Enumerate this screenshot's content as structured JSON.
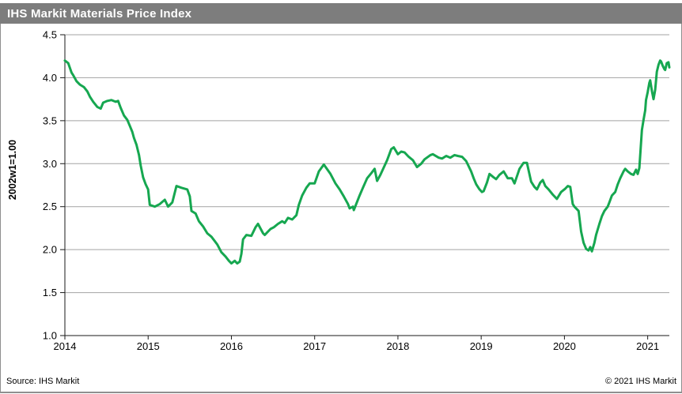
{
  "header": {
    "title": "IHS Markit Materials Price Index"
  },
  "footer": {
    "source": "Source: IHS Markit",
    "copyright": "© 2021 IHS Markit"
  },
  "colors": {
    "header_bg": "#7d7d7d",
    "header_text": "#ffffff",
    "line": "#16a750",
    "grid": "#a3a3a3",
    "axis": "#1a1a1a",
    "frame_border": "#8f8f8f"
  },
  "chart_data": {
    "type": "line",
    "title": "IHS Markit Materials Price Index",
    "xlabel": "",
    "ylabel": "2002w1=1.00",
    "legend": "none",
    "grid": "horizontal",
    "xlim": [
      2014.0,
      2021.26
    ],
    "ylim": [
      1.0,
      4.5
    ],
    "x_ticks": [
      "2014",
      "2015",
      "2016",
      "2017",
      "2018",
      "2019",
      "2020",
      "2021"
    ],
    "y_ticks": [
      "1.0",
      "1.5",
      "2.0",
      "2.5",
      "3.0",
      "3.5",
      "4.0",
      "4.5"
    ],
    "series": [
      {
        "name": "Materials Price Index",
        "color": "#16a750",
        "points": [
          [
            2014.0,
            4.2
          ],
          [
            2014.04,
            4.17
          ],
          [
            2014.08,
            4.06
          ],
          [
            2014.1,
            4.03
          ],
          [
            2014.14,
            3.96
          ],
          [
            2014.18,
            3.92
          ],
          [
            2014.23,
            3.89
          ],
          [
            2014.27,
            3.84
          ],
          [
            2014.3,
            3.78
          ],
          [
            2014.34,
            3.72
          ],
          [
            2014.39,
            3.66
          ],
          [
            2014.43,
            3.64
          ],
          [
            2014.46,
            3.71
          ],
          [
            2014.51,
            3.73
          ],
          [
            2014.56,
            3.74
          ],
          [
            2014.61,
            3.72
          ],
          [
            2014.64,
            3.73
          ],
          [
            2014.67,
            3.65
          ],
          [
            2014.71,
            3.56
          ],
          [
            2014.75,
            3.51
          ],
          [
            2014.78,
            3.44
          ],
          [
            2014.81,
            3.37
          ],
          [
            2014.83,
            3.3
          ],
          [
            2014.86,
            3.22
          ],
          [
            2014.89,
            3.1
          ],
          [
            2014.91,
            2.98
          ],
          [
            2014.94,
            2.84
          ],
          [
            2014.97,
            2.76
          ],
          [
            2015.0,
            2.7
          ],
          [
            2015.02,
            2.52
          ],
          [
            2015.08,
            2.5
          ],
          [
            2015.14,
            2.53
          ],
          [
            2015.2,
            2.58
          ],
          [
            2015.24,
            2.5
          ],
          [
            2015.29,
            2.55
          ],
          [
            2015.34,
            2.74
          ],
          [
            2015.4,
            2.72
          ],
          [
            2015.47,
            2.7
          ],
          [
            2015.5,
            2.62
          ],
          [
            2015.52,
            2.45
          ],
          [
            2015.57,
            2.42
          ],
          [
            2015.61,
            2.33
          ],
          [
            2015.66,
            2.27
          ],
          [
            2015.71,
            2.19
          ],
          [
            2015.76,
            2.15
          ],
          [
            2015.8,
            2.1
          ],
          [
            2015.83,
            2.06
          ],
          [
            2015.88,
            1.97
          ],
          [
            2015.93,
            1.92
          ],
          [
            2015.97,
            1.87
          ],
          [
            2016.0,
            1.84
          ],
          [
            2016.04,
            1.87
          ],
          [
            2016.07,
            1.84
          ],
          [
            2016.1,
            1.86
          ],
          [
            2016.12,
            1.95
          ],
          [
            2016.14,
            2.12
          ],
          [
            2016.18,
            2.17
          ],
          [
            2016.24,
            2.16
          ],
          [
            2016.29,
            2.26
          ],
          [
            2016.32,
            2.3
          ],
          [
            2016.38,
            2.19
          ],
          [
            2016.4,
            2.17
          ],
          [
            2016.47,
            2.24
          ],
          [
            2016.51,
            2.26
          ],
          [
            2016.56,
            2.3
          ],
          [
            2016.61,
            2.33
          ],
          [
            2016.64,
            2.31
          ],
          [
            2016.68,
            2.37
          ],
          [
            2016.73,
            2.35
          ],
          [
            2016.78,
            2.4
          ],
          [
            2016.81,
            2.52
          ],
          [
            2016.85,
            2.63
          ],
          [
            2016.9,
            2.72
          ],
          [
            2016.94,
            2.77
          ],
          [
            2017.0,
            2.77
          ],
          [
            2017.05,
            2.91
          ],
          [
            2017.11,
            2.99
          ],
          [
            2017.19,
            2.88
          ],
          [
            2017.25,
            2.77
          ],
          [
            2017.3,
            2.7
          ],
          [
            2017.35,
            2.62
          ],
          [
            2017.4,
            2.53
          ],
          [
            2017.42,
            2.48
          ],
          [
            2017.46,
            2.5
          ],
          [
            2017.47,
            2.46
          ],
          [
            2017.54,
            2.63
          ],
          [
            2017.58,
            2.72
          ],
          [
            2017.63,
            2.83
          ],
          [
            2017.68,
            2.89
          ],
          [
            2017.72,
            2.94
          ],
          [
            2017.75,
            2.8
          ],
          [
            2017.79,
            2.87
          ],
          [
            2017.87,
            3.04
          ],
          [
            2017.92,
            3.17
          ],
          [
            2017.95,
            3.19
          ],
          [
            2018.0,
            3.11
          ],
          [
            2018.04,
            3.14
          ],
          [
            2018.08,
            3.13
          ],
          [
            2018.13,
            3.08
          ],
          [
            2018.18,
            3.04
          ],
          [
            2018.23,
            2.96
          ],
          [
            2018.28,
            3.0
          ],
          [
            2018.32,
            3.05
          ],
          [
            2018.39,
            3.1
          ],
          [
            2018.42,
            3.11
          ],
          [
            2018.49,
            3.07
          ],
          [
            2018.53,
            3.06
          ],
          [
            2018.58,
            3.09
          ],
          [
            2018.63,
            3.07
          ],
          [
            2018.68,
            3.1
          ],
          [
            2018.72,
            3.09
          ],
          [
            2018.77,
            3.08
          ],
          [
            2018.82,
            3.03
          ],
          [
            2018.85,
            2.97
          ],
          [
            2018.88,
            2.91
          ],
          [
            2018.91,
            2.83
          ],
          [
            2018.94,
            2.76
          ],
          [
            2018.98,
            2.7
          ],
          [
            2019.01,
            2.67
          ],
          [
            2019.03,
            2.68
          ],
          [
            2019.07,
            2.78
          ],
          [
            2019.1,
            2.88
          ],
          [
            2019.15,
            2.84
          ],
          [
            2019.18,
            2.82
          ],
          [
            2019.22,
            2.87
          ],
          [
            2019.27,
            2.91
          ],
          [
            2019.32,
            2.83
          ],
          [
            2019.37,
            2.83
          ],
          [
            2019.4,
            2.77
          ],
          [
            2019.46,
            2.94
          ],
          [
            2019.51,
            3.01
          ],
          [
            2019.55,
            3.01
          ],
          [
            2019.6,
            2.79
          ],
          [
            2019.64,
            2.73
          ],
          [
            2019.67,
            2.7
          ],
          [
            2019.71,
            2.78
          ],
          [
            2019.74,
            2.81
          ],
          [
            2019.77,
            2.74
          ],
          [
            2019.81,
            2.7
          ],
          [
            2019.86,
            2.64
          ],
          [
            2019.91,
            2.59
          ],
          [
            2019.96,
            2.67
          ],
          [
            2020.01,
            2.71
          ],
          [
            2020.04,
            2.74
          ],
          [
            2020.07,
            2.73
          ],
          [
            2020.1,
            2.53
          ],
          [
            2020.12,
            2.5
          ],
          [
            2020.17,
            2.45
          ],
          [
            2020.2,
            2.21
          ],
          [
            2020.23,
            2.08
          ],
          [
            2020.26,
            2.01
          ],
          [
            2020.29,
            1.99
          ],
          [
            2020.31,
            2.03
          ],
          [
            2020.33,
            1.98
          ],
          [
            2020.36,
            2.08
          ],
          [
            2020.38,
            2.17
          ],
          [
            2020.42,
            2.3
          ],
          [
            2020.45,
            2.39
          ],
          [
            2020.48,
            2.45
          ],
          [
            2020.52,
            2.5
          ],
          [
            2020.54,
            2.55
          ],
          [
            2020.57,
            2.63
          ],
          [
            2020.61,
            2.67
          ],
          [
            2020.64,
            2.76
          ],
          [
            2020.67,
            2.83
          ],
          [
            2020.71,
            2.91
          ],
          [
            2020.73,
            2.94
          ],
          [
            2020.76,
            2.91
          ],
          [
            2020.8,
            2.88
          ],
          [
            2020.83,
            2.87
          ],
          [
            2020.86,
            2.93
          ],
          [
            2020.88,
            2.88
          ],
          [
            2020.9,
            2.95
          ],
          [
            2020.91,
            3.1
          ],
          [
            2020.93,
            3.39
          ],
          [
            2020.95,
            3.51
          ],
          [
            2020.97,
            3.62
          ],
          [
            2020.98,
            3.74
          ],
          [
            2021.0,
            3.83
          ],
          [
            2021.02,
            3.94
          ],
          [
            2021.03,
            3.97
          ],
          [
            2021.05,
            3.85
          ],
          [
            2021.07,
            3.75
          ],
          [
            2021.09,
            3.86
          ],
          [
            2021.1,
            3.97
          ],
          [
            2021.11,
            4.07
          ],
          [
            2021.13,
            4.15
          ],
          [
            2021.15,
            4.2
          ],
          [
            2021.16,
            4.19
          ],
          [
            2021.18,
            4.14
          ],
          [
            2021.2,
            4.1
          ],
          [
            2021.21,
            4.09
          ],
          [
            2021.23,
            4.17
          ],
          [
            2021.25,
            4.18
          ],
          [
            2021.26,
            4.12
          ]
        ]
      }
    ]
  }
}
